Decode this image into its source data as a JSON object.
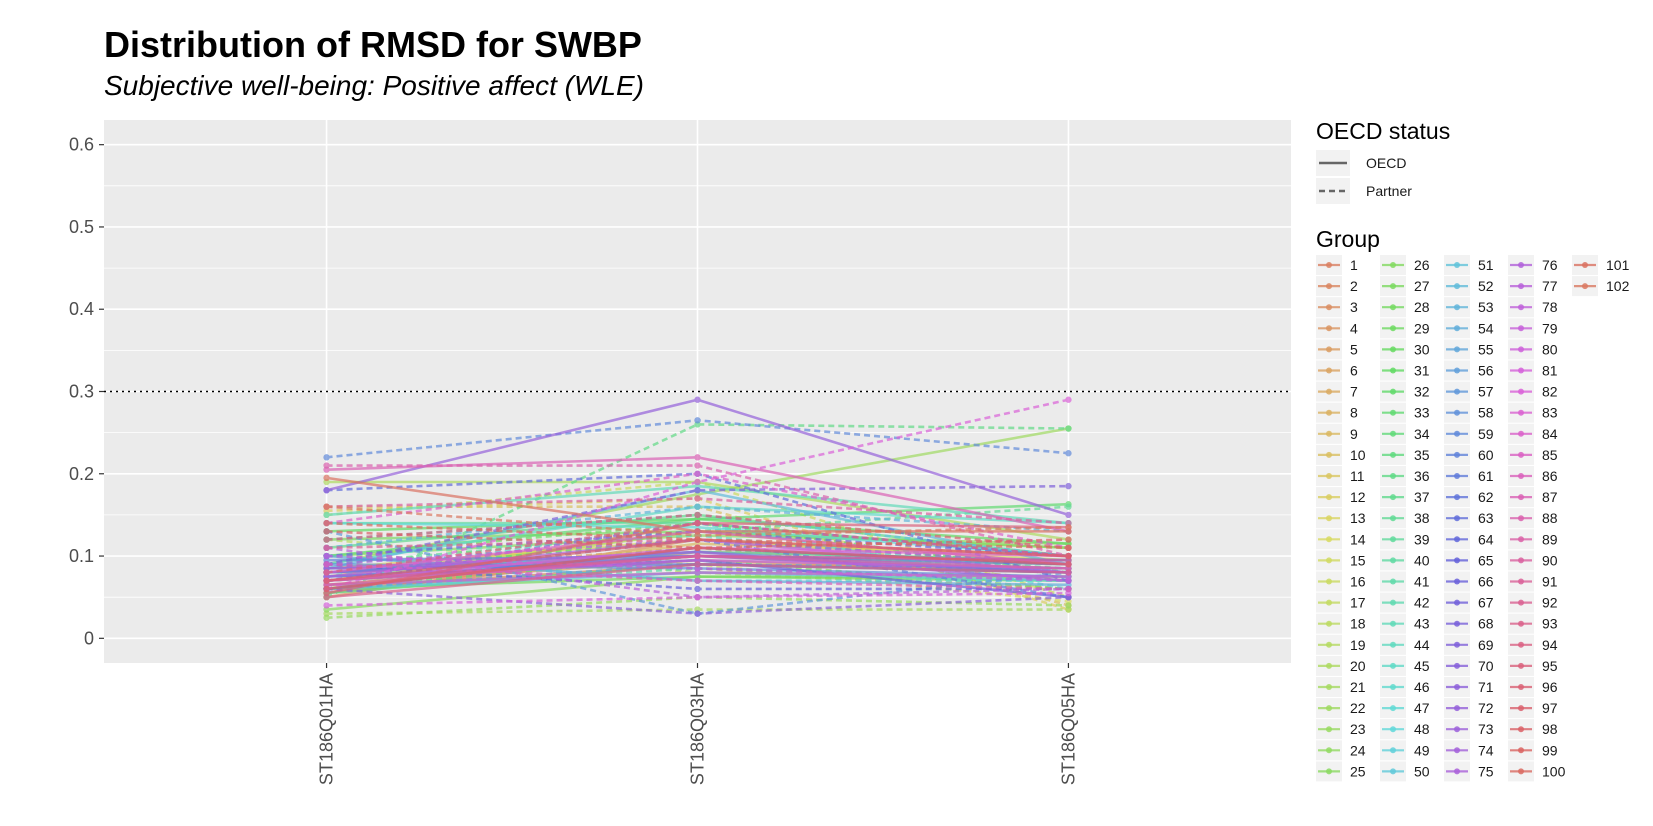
{
  "chart_data": {
    "type": "line",
    "title": "Distribution of RMSD for SWBP",
    "subtitle": "Subjective well-being: Positive affect (WLE)",
    "xlabel": "",
    "ylabel": "",
    "categories": [
      "ST186Q01HA",
      "ST186Q03HA",
      "ST186Q05HA"
    ],
    "ylim": [
      -0.03,
      0.63
    ],
    "yticks": [
      0,
      0.1,
      0.2,
      0.3,
      0.4,
      0.5,
      0.6
    ],
    "ytick_labels": [
      "0",
      "0.1",
      "0.2",
      "0.3",
      "0.4",
      "0.5",
      "0.6"
    ],
    "reference_line": {
      "y": 0.3,
      "style": "dotted"
    },
    "grid": true,
    "legend_placement": "right",
    "linetype_legend": {
      "title": "OECD status",
      "entries": [
        {
          "label": "OECD",
          "dash": "solid"
        },
        {
          "label": "Partner",
          "dash": "dashed"
        }
      ]
    },
    "color_legend": {
      "title": "Group",
      "labels": [
        "1",
        "2",
        "3",
        "4",
        "5",
        "6",
        "7",
        "8",
        "9",
        "10",
        "11",
        "12",
        "13",
        "14",
        "15",
        "16",
        "17",
        "18",
        "19",
        "20",
        "21",
        "22",
        "23",
        "24",
        "25",
        "26",
        "27",
        "28",
        "29",
        "30",
        "31",
        "32",
        "33",
        "34",
        "35",
        "36",
        "37",
        "38",
        "39",
        "40",
        "41",
        "42",
        "43",
        "44",
        "45",
        "46",
        "47",
        "48",
        "49",
        "50",
        "51",
        "52",
        "53",
        "54",
        "55",
        "56",
        "57",
        "58",
        "59",
        "60",
        "61",
        "62",
        "63",
        "64",
        "65",
        "66",
        "67",
        "68",
        "69",
        "70",
        "71",
        "72",
        "73",
        "74",
        "75",
        "76",
        "77",
        "78",
        "79",
        "80",
        "81",
        "82",
        "83",
        "84",
        "85",
        "86",
        "87",
        "88",
        "89",
        "90",
        "91",
        "92",
        "93",
        "94",
        "95",
        "96",
        "97",
        "98",
        "99",
        "100",
        "101",
        "102"
      ]
    },
    "series": [
      {
        "name": "1",
        "status": "OECD",
        "values": [
          0.055,
          0.105,
          0.095
        ]
      },
      {
        "name": "2",
        "status": "OECD",
        "values": [
          0.06,
          0.09,
          0.085
        ]
      },
      {
        "name": "3",
        "status": "Partner",
        "values": [
          0.07,
          0.1,
          0.09
        ]
      },
      {
        "name": "4",
        "status": "OECD",
        "values": [
          0.05,
          0.12,
          0.1
        ]
      },
      {
        "name": "5",
        "status": "OECD",
        "values": [
          0.065,
          0.095,
          0.08
        ]
      },
      {
        "name": "6",
        "status": "Partner",
        "values": [
          0.08,
          0.11,
          0.07
        ]
      },
      {
        "name": "7",
        "status": "OECD",
        "values": [
          0.075,
          0.13,
          0.09
        ]
      },
      {
        "name": "8",
        "status": "Partner",
        "values": [
          0.09,
          0.085,
          0.06
        ]
      },
      {
        "name": "9",
        "status": "OECD",
        "values": [
          0.06,
          0.115,
          0.1
        ]
      },
      {
        "name": "10",
        "status": "Partner",
        "values": [
          0.16,
          0.16,
          0.04
        ]
      },
      {
        "name": "11",
        "status": "OECD",
        "values": [
          0.07,
          0.1,
          0.08
        ]
      },
      {
        "name": "12",
        "status": "Partner",
        "values": [
          0.155,
          0.17,
          0.035
        ]
      },
      {
        "name": "13",
        "status": "OECD",
        "values": [
          0.085,
          0.12,
          0.095
        ]
      },
      {
        "name": "14",
        "status": "Partner",
        "values": [
          0.1,
          0.09,
          0.045
        ]
      },
      {
        "name": "15",
        "status": "OECD",
        "values": [
          0.06,
          0.14,
          0.1
        ]
      },
      {
        "name": "16",
        "status": "Partner",
        "values": [
          0.15,
          0.19,
          0.05
        ]
      },
      {
        "name": "17",
        "status": "OECD",
        "values": [
          0.08,
          0.1,
          0.09
        ]
      },
      {
        "name": "18",
        "status": "Partner",
        "values": [
          0.12,
          0.08,
          0.06
        ]
      },
      {
        "name": "19",
        "status": "OECD",
        "values": [
          0.07,
          0.13,
          0.11
        ]
      },
      {
        "name": "20",
        "status": "OECD",
        "values": [
          0.19,
          0.19,
          0.12
        ]
      },
      {
        "name": "21",
        "status": "Partner",
        "values": [
          0.03,
          0.035,
          0.035
        ]
      },
      {
        "name": "22",
        "status": "OECD",
        "values": [
          0.09,
          0.175,
          0.255
        ]
      },
      {
        "name": "23",
        "status": "Partner",
        "values": [
          0.025,
          0.05,
          0.04
        ]
      },
      {
        "name": "24",
        "status": "OECD",
        "values": [
          0.1,
          0.125,
          0.115
        ]
      },
      {
        "name": "25",
        "status": "OECD",
        "values": [
          0.035,
          0.075,
          0.075
        ]
      },
      {
        "name": "26",
        "status": "Partner",
        "values": [
          0.07,
          0.095,
          0.06
        ]
      },
      {
        "name": "27",
        "status": "OECD",
        "values": [
          0.12,
          0.13,
          0.11
        ]
      },
      {
        "name": "28",
        "status": "OECD",
        "values": [
          0.06,
          0.075,
          0.07
        ]
      },
      {
        "name": "29",
        "status": "Partner",
        "values": [
          0.1,
          0.14,
          0.08
        ]
      },
      {
        "name": "30",
        "status": "OECD",
        "values": [
          0.065,
          0.08,
          0.075
        ]
      },
      {
        "name": "31",
        "status": "OECD",
        "values": [
          0.13,
          0.145,
          0.115
        ]
      },
      {
        "name": "32",
        "status": "Partner",
        "values": [
          0.08,
          0.12,
          0.09
        ]
      },
      {
        "name": "33",
        "status": "OECD",
        "values": [
          0.1,
          0.145,
          0.163
        ]
      },
      {
        "name": "34",
        "status": "Partner",
        "values": [
          0.06,
          0.1,
          0.085
        ]
      },
      {
        "name": "35",
        "status": "OECD",
        "values": [
          0.055,
          0.09,
          0.08
        ]
      },
      {
        "name": "36",
        "status": "Partner",
        "values": [
          0.05,
          0.26,
          0.255
        ]
      },
      {
        "name": "37",
        "status": "OECD",
        "values": [
          0.11,
          0.15,
          0.1
        ]
      },
      {
        "name": "38",
        "status": "Partner",
        "values": [
          0.09,
          0.13,
          0.16
        ]
      },
      {
        "name": "39",
        "status": "OECD",
        "values": [
          0.14,
          0.14,
          0.1
        ]
      },
      {
        "name": "40",
        "status": "Partner",
        "values": [
          0.07,
          0.11,
          0.085
        ]
      },
      {
        "name": "41",
        "status": "OECD",
        "values": [
          0.08,
          0.105,
          0.095
        ]
      },
      {
        "name": "42",
        "status": "Partner",
        "values": [
          0.06,
          0.085,
          0.07
        ]
      },
      {
        "name": "43",
        "status": "OECD",
        "values": [
          0.15,
          0.185,
          0.14
        ]
      },
      {
        "name": "44",
        "status": "Partner",
        "values": [
          0.1,
          0.125,
          0.08
        ]
      },
      {
        "name": "45",
        "status": "OECD",
        "values": [
          0.09,
          0.16,
          0.14
        ]
      },
      {
        "name": "46",
        "status": "Partner",
        "values": [
          0.075,
          0.14,
          0.06
        ]
      },
      {
        "name": "47",
        "status": "OECD",
        "values": [
          0.14,
          0.135,
          0.1
        ]
      },
      {
        "name": "48",
        "status": "Partner",
        "values": [
          0.1,
          0.07,
          0.07
        ]
      },
      {
        "name": "49",
        "status": "OECD",
        "values": [
          0.075,
          0.1,
          0.085
        ]
      },
      {
        "name": "50",
        "status": "OECD",
        "values": [
          0.06,
          0.08,
          0.07
        ]
      },
      {
        "name": "51",
        "status": "Partner",
        "values": [
          0.12,
          0.15,
          0.1
        ]
      },
      {
        "name": "52",
        "status": "OECD",
        "values": [
          0.085,
          0.18,
          0.09
        ]
      },
      {
        "name": "53",
        "status": "Partner",
        "values": [
          0.11,
          0.16,
          0.13
        ]
      },
      {
        "name": "54",
        "status": "OECD",
        "values": [
          0.1,
          0.07,
          0.065
        ]
      },
      {
        "name": "55",
        "status": "Partner",
        "values": [
          0.06,
          0.09,
          0.085
        ]
      },
      {
        "name": "56",
        "status": "OECD",
        "values": [
          0.08,
          0.105,
          0.08
        ]
      },
      {
        "name": "57",
        "status": "Partner",
        "values": [
          0.13,
          0.03,
          0.08
        ]
      },
      {
        "name": "58",
        "status": "OECD",
        "values": [
          0.09,
          0.085,
          0.075
        ]
      },
      {
        "name": "59",
        "status": "Partner",
        "values": [
          0.22,
          0.265,
          0.225
        ]
      },
      {
        "name": "60",
        "status": "OECD",
        "values": [
          0.095,
          0.1,
          0.09
        ]
      },
      {
        "name": "61",
        "status": "Partner",
        "values": [
          0.07,
          0.12,
          0.05
        ]
      },
      {
        "name": "62",
        "status": "OECD",
        "values": [
          0.085,
          0.09,
          0.08
        ]
      },
      {
        "name": "63",
        "status": "Partner",
        "values": [
          0.18,
          0.2,
          0.07
        ]
      },
      {
        "name": "64",
        "status": "OECD",
        "values": [
          0.07,
          0.1,
          0.095
        ]
      },
      {
        "name": "65",
        "status": "Partner",
        "values": [
          0.09,
          0.06,
          0.06
        ]
      },
      {
        "name": "66",
        "status": "OECD",
        "values": [
          0.075,
          0.095,
          0.05
        ]
      },
      {
        "name": "67",
        "status": "Partner",
        "values": [
          0.1,
          0.13,
          0.1
        ]
      },
      {
        "name": "68",
        "status": "OECD",
        "values": [
          0.06,
          0.11,
          0.09
        ]
      },
      {
        "name": "69",
        "status": "Partner",
        "values": [
          0.09,
          0.18,
          0.185
        ]
      },
      {
        "name": "70",
        "status": "OECD",
        "values": [
          0.08,
          0.1,
          0.08
        ]
      },
      {
        "name": "71",
        "status": "Partner",
        "values": [
          0.06,
          0.03,
          0.05
        ]
      },
      {
        "name": "72",
        "status": "OECD",
        "values": [
          0.18,
          0.29,
          0.15
        ]
      },
      {
        "name": "73",
        "status": "Partner",
        "values": [
          0.07,
          0.14,
          0.1
        ]
      },
      {
        "name": "74",
        "status": "OECD",
        "values": [
          0.085,
          0.105,
          0.07
        ]
      },
      {
        "name": "75",
        "status": "Partner",
        "values": [
          0.09,
          0.12,
          0.09
        ]
      },
      {
        "name": "76",
        "status": "OECD",
        "values": [
          0.075,
          0.12,
          0.08
        ]
      },
      {
        "name": "77",
        "status": "Partner",
        "values": [
          0.11,
          0.05,
          0.06
        ]
      },
      {
        "name": "78",
        "status": "OECD",
        "values": [
          0.07,
          0.095,
          0.085
        ]
      },
      {
        "name": "79",
        "status": "Partner",
        "values": [
          0.1,
          0.085,
          0.07
        ]
      },
      {
        "name": "80",
        "status": "OECD",
        "values": [
          0.065,
          0.08,
          0.075
        ]
      },
      {
        "name": "81",
        "status": "Partner",
        "values": [
          0.04,
          0.05,
          0.055
        ]
      },
      {
        "name": "82",
        "status": "Partner",
        "values": [
          0.06,
          0.19,
          0.29
        ]
      },
      {
        "name": "83",
        "status": "OECD",
        "values": [
          0.07,
          0.11,
          0.1
        ]
      },
      {
        "name": "84",
        "status": "Partner",
        "values": [
          0.14,
          0.2,
          0.11
        ]
      },
      {
        "name": "85",
        "status": "OECD",
        "values": [
          0.08,
          0.13,
          0.09
        ]
      },
      {
        "name": "86",
        "status": "Partner",
        "values": [
          0.09,
          0.07,
          0.06
        ]
      },
      {
        "name": "87",
        "status": "OECD",
        "values": [
          0.205,
          0.22,
          0.13
        ]
      },
      {
        "name": "88",
        "status": "Partner",
        "values": [
          0.21,
          0.21,
          0.1
        ]
      },
      {
        "name": "89",
        "status": "OECD",
        "values": [
          0.065,
          0.1,
          0.085
        ]
      },
      {
        "name": "90",
        "status": "Partner",
        "values": [
          0.16,
          0.17,
          0.14
        ]
      },
      {
        "name": "91",
        "status": "OECD",
        "values": [
          0.07,
          0.1,
          0.095
        ]
      },
      {
        "name": "92",
        "status": "Partner",
        "values": [
          0.11,
          0.12,
          0.1
        ]
      },
      {
        "name": "93",
        "status": "OECD",
        "values": [
          0.05,
          0.09,
          0.08
        ]
      },
      {
        "name": "94",
        "status": "Partner",
        "values": [
          0.08,
          0.14,
          0.1
        ]
      },
      {
        "name": "95",
        "status": "OECD",
        "values": [
          0.055,
          0.14,
          0.135
        ]
      },
      {
        "name": "96",
        "status": "Partner",
        "values": [
          0.12,
          0.15,
          0.11
        ]
      },
      {
        "name": "97",
        "status": "OECD",
        "values": [
          0.07,
          0.12,
          0.1
        ]
      },
      {
        "name": "98",
        "status": "Partner",
        "values": [
          0.13,
          0.11,
          0.12
        ]
      },
      {
        "name": "99",
        "status": "OECD",
        "values": [
          0.06,
          0.11,
          0.09
        ]
      },
      {
        "name": "100",
        "status": "Partner",
        "values": [
          0.14,
          0.12,
          0.11
        ]
      },
      {
        "name": "101",
        "status": "OECD",
        "values": [
          0.195,
          0.13,
          0.13
        ]
      },
      {
        "name": "102",
        "status": "Partner",
        "values": [
          0.16,
          0.125,
          0.135
        ]
      }
    ]
  }
}
